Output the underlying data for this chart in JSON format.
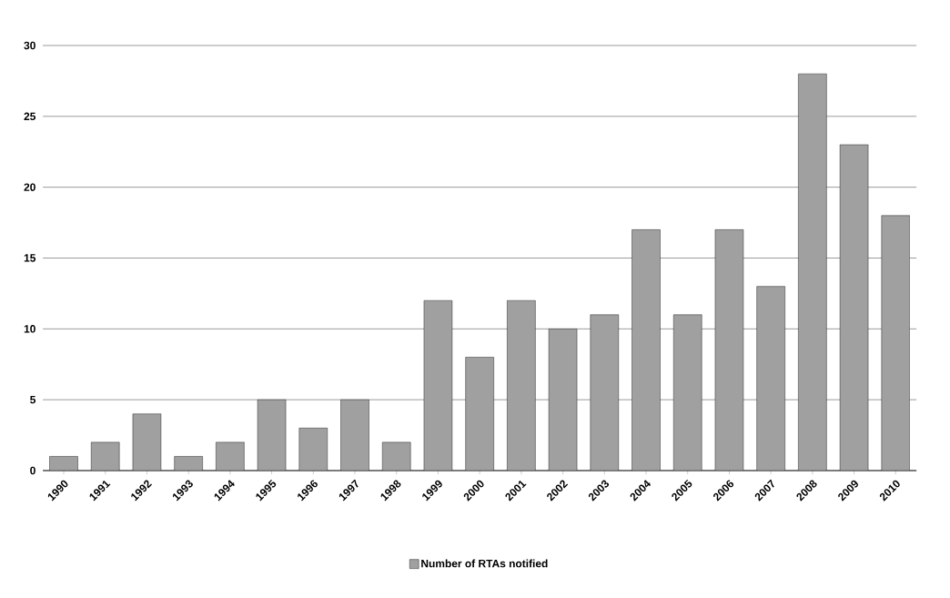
{
  "chart_data": {
    "type": "bar",
    "categories": [
      "1990",
      "1991",
      "1992",
      "1993",
      "1994",
      "1995",
      "1996",
      "1997",
      "1998",
      "1999",
      "2000",
      "2001",
      "2002",
      "2003",
      "2004",
      "2005",
      "2006",
      "2007",
      "2008",
      "2009",
      "2010"
    ],
    "series": [
      {
        "name": "Number of RTAs notified",
        "color": "#a0a0a0",
        "values": [
          1,
          2,
          4,
          1,
          2,
          5,
          3,
          5,
          2,
          12,
          8,
          12,
          10,
          11,
          17,
          11,
          17,
          13,
          28,
          23,
          18
        ]
      }
    ],
    "ylim": [
      0,
      30
    ],
    "yticks": [
      0,
      5,
      10,
      15,
      20,
      25,
      30
    ],
    "grid": "y",
    "legend": "bottom"
  }
}
